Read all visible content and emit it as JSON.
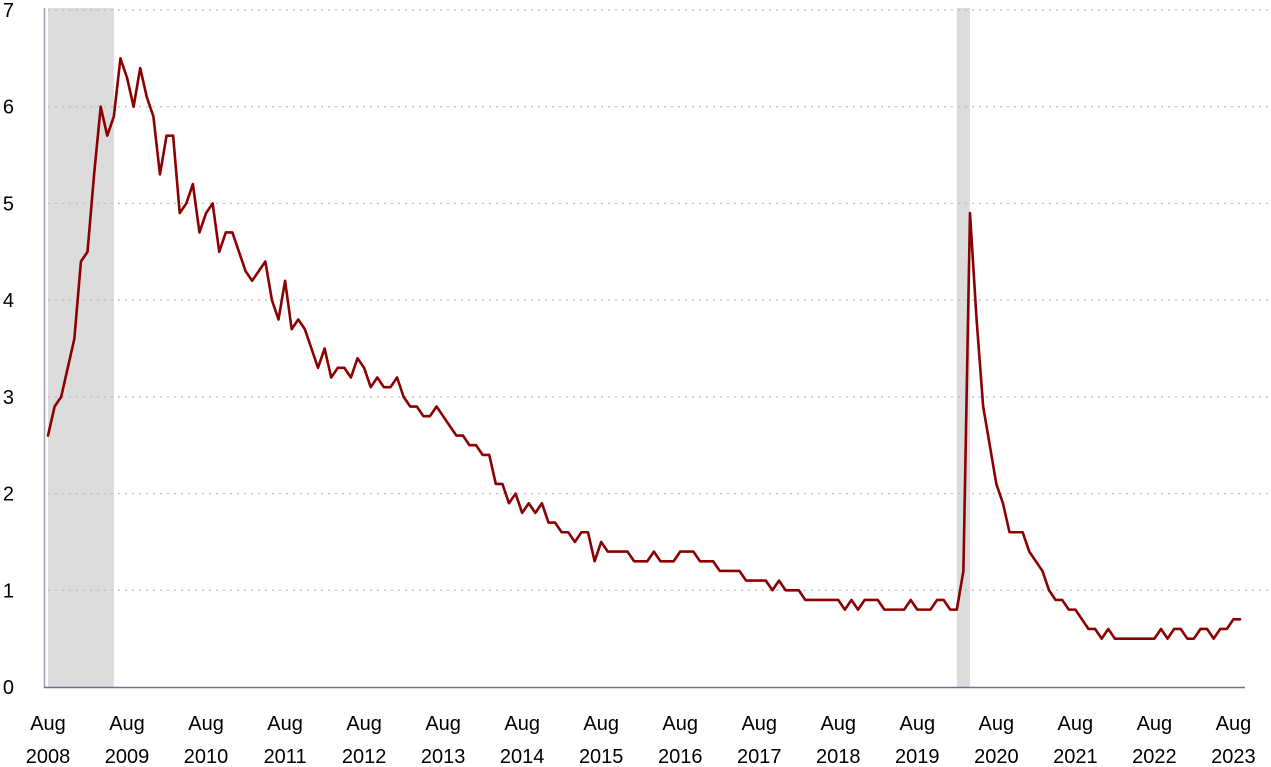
{
  "chart_data": {
    "type": "line",
    "title": "",
    "xlabel": "",
    "ylabel": "",
    "ylim": [
      0,
      7
    ],
    "y_ticks": [
      "0",
      "1",
      "2",
      "3",
      "4",
      "5",
      "6",
      "7"
    ],
    "x_ticks": [
      [
        "Aug",
        "2008"
      ],
      [
        "Aug",
        "2009"
      ],
      [
        "Aug",
        "2010"
      ],
      [
        "Aug",
        "2011"
      ],
      [
        "Aug",
        "2012"
      ],
      [
        "Aug",
        "2013"
      ],
      [
        "Aug",
        "2014"
      ],
      [
        "Aug",
        "2015"
      ],
      [
        "Aug",
        "2016"
      ],
      [
        "Aug",
        "2017"
      ],
      [
        "Aug",
        "2018"
      ],
      [
        "Aug",
        "2019"
      ],
      [
        "Aug",
        "2020"
      ],
      [
        "Aug",
        "2021"
      ],
      [
        "Aug",
        "2022"
      ],
      [
        "Aug",
        "2023"
      ]
    ],
    "x_start": "2008-08",
    "grid": "horizontal dotted",
    "line_color": "#8b0000",
    "recession_color": "#dcdcdc",
    "recessions": [
      {
        "start": "2008-08",
        "end": "2009-06"
      },
      {
        "start": "2020-02",
        "end": "2020-04"
      }
    ],
    "series": [
      {
        "values": [
          2.6,
          2.9,
          3.0,
          3.3,
          3.6,
          4.4,
          4.5,
          5.3,
          6.0,
          5.7,
          5.9,
          6.5,
          6.3,
          6.0,
          6.4,
          6.1,
          5.9,
          5.3,
          5.7,
          5.7,
          4.9,
          5.0,
          5.2,
          4.7,
          4.9,
          5.0,
          4.5,
          4.7,
          4.7,
          4.5,
          4.3,
          4.2,
          4.3,
          4.4,
          4.0,
          3.8,
          4.2,
          3.7,
          3.8,
          3.7,
          3.5,
          3.3,
          3.5,
          3.2,
          3.3,
          3.3,
          3.2,
          3.4,
          3.3,
          3.1,
          3.2,
          3.1,
          3.1,
          3.2,
          3.0,
          2.9,
          2.9,
          2.8,
          2.8,
          2.9,
          2.8,
          2.7,
          2.6,
          2.6,
          2.5,
          2.5,
          2.4,
          2.4,
          2.1,
          2.1,
          1.9,
          2.0,
          1.8,
          1.9,
          1.8,
          1.9,
          1.7,
          1.7,
          1.6,
          1.6,
          1.5,
          1.6,
          1.6,
          1.3,
          1.5,
          1.4,
          1.4,
          1.4,
          1.4,
          1.3,
          1.3,
          1.3,
          1.4,
          1.3,
          1.3,
          1.3,
          1.4,
          1.4,
          1.4,
          1.3,
          1.3,
          1.3,
          1.2,
          1.2,
          1.2,
          1.2,
          1.1,
          1.1,
          1.1,
          1.1,
          1.0,
          1.1,
          1.0,
          1.0,
          1.0,
          0.9,
          0.9,
          0.9,
          0.9,
          0.9,
          0.9,
          0.8,
          0.9,
          0.8,
          0.9,
          0.9,
          0.9,
          0.8,
          0.8,
          0.8,
          0.8,
          0.9,
          0.8,
          0.8,
          0.8,
          0.9,
          0.9,
          0.8,
          0.8,
          1.2,
          4.9,
          3.8,
          2.9,
          2.5,
          2.1,
          1.9,
          1.6,
          1.6,
          1.6,
          1.4,
          1.3,
          1.2,
          1.0,
          0.9,
          0.9,
          0.8,
          0.8,
          0.7,
          0.6,
          0.6,
          0.5,
          0.6,
          0.5,
          0.5,
          0.5,
          0.5,
          0.5,
          0.5,
          0.5,
          0.6,
          0.5,
          0.6,
          0.6,
          0.5,
          0.5,
          0.6,
          0.6,
          0.5,
          0.6,
          0.6,
          0.7,
          0.7
        ]
      }
    ]
  }
}
